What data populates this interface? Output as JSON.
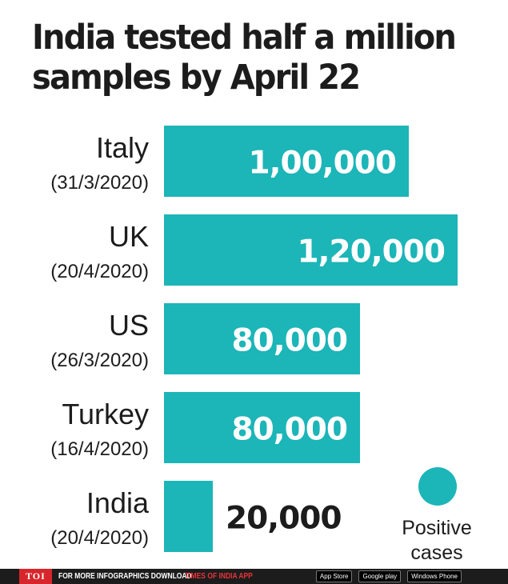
{
  "title_lines": [
    "India tested half a million",
    "samples by April 22"
  ],
  "colors": {
    "bar": "#1cb5b8",
    "text": "#1c1c1c",
    "label_inside": "#ffffff",
    "footer_bg": "#1c1c1c",
    "footer_accent": "#e8343a"
  },
  "legend": {
    "label": "Positive cases"
  },
  "footer": {
    "logo": "TOI",
    "text": "FOR MORE INFOGRAPHICS DOWNLOAD",
    "app_name": "TIMES OF INDIA APP",
    "stores": [
      "App Store",
      "Google play",
      "Windows Phone"
    ]
  },
  "chart_data": {
    "type": "bar",
    "orientation": "horizontal",
    "categories": [
      "Italy",
      "UK",
      "US",
      "Turkey",
      "India"
    ],
    "category_dates": [
      "(31/3/2020)",
      "(20/4/2020)",
      "(26/3/2020)",
      "(16/4/2020)",
      "(20/4/2020)"
    ],
    "values": [
      100000,
      120000,
      80000,
      80000,
      20000
    ],
    "data_labels": [
      "1,00,000",
      "1,20,000",
      "80,000",
      "80,000",
      "20,000"
    ],
    "series": [
      {
        "name": "Positive cases",
        "values": [
          100000,
          120000,
          80000,
          80000,
          20000
        ]
      }
    ],
    "legend_position": "bottom-right",
    "grid": false,
    "xlim": [
      0,
      120000
    ]
  }
}
